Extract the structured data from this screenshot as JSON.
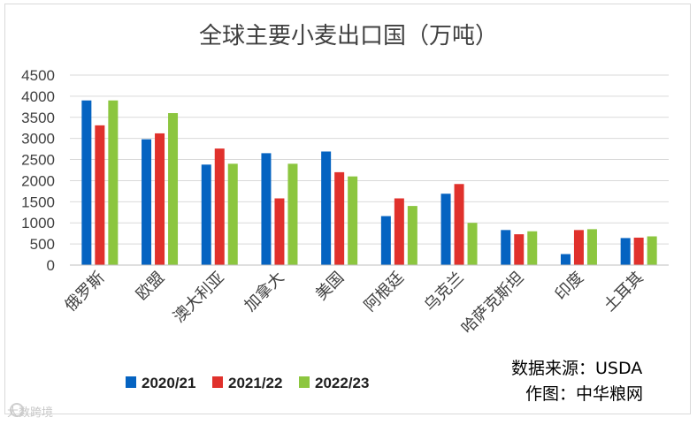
{
  "chart_data": {
    "type": "bar",
    "title": "全球主要小麦出口国（万吨）",
    "categories": [
      "俄罗斯",
      "欧盟",
      "澳大利亚",
      "加拿大",
      "美国",
      "阿根廷",
      "乌克兰",
      "哈萨克斯坦",
      "印度",
      "土耳其"
    ],
    "series": [
      {
        "name": "2020/21",
        "color": "#0563c1",
        "values": [
          3900,
          2980,
          2380,
          2650,
          2690,
          1160,
          1690,
          830,
          260,
          640
        ]
      },
      {
        "name": "2021/22",
        "color": "#e0312c",
        "values": [
          3310,
          3120,
          2760,
          1580,
          2200,
          1580,
          1920,
          730,
          830,
          650
        ]
      },
      {
        "name": "2022/23",
        "color": "#8cc63f",
        "values": [
          3900,
          3600,
          2400,
          2400,
          2100,
          1400,
          1000,
          800,
          850,
          680
        ]
      }
    ],
    "yticks": [
      "0",
      "500",
      "1000",
      "1500",
      "2000",
      "2500",
      "3000",
      "3500",
      "4000",
      "4500"
    ],
    "ylim": [
      0,
      4500
    ],
    "grid": true,
    "legend": "bottom-left"
  },
  "notes": {
    "source": "数据来源：USDA",
    "maker": "作图：中华粮网"
  },
  "watermark": "大数跨境"
}
